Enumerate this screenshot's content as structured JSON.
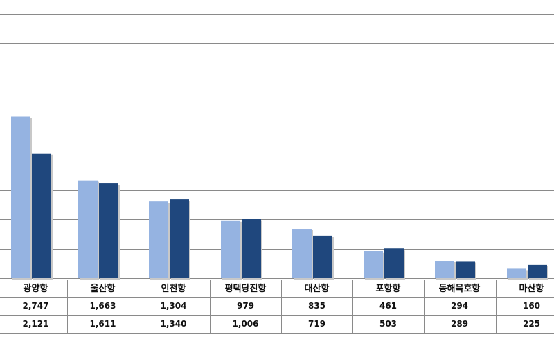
{
  "chart_data": {
    "type": "bar",
    "categories": [
      "광양항",
      "울산항",
      "인천항",
      "평택당진항",
      "대산항",
      "포항항",
      "동해묵호항",
      "마산항"
    ],
    "series": [
      {
        "values": [
          2747,
          1663,
          1304,
          979,
          835,
          461,
          294,
          160
        ],
        "color": "#95b3e1"
      },
      {
        "values": [
          2121,
          1611,
          1340,
          1006,
          719,
          503,
          289,
          225
        ],
        "color": "#1f477d"
      }
    ],
    "ylim": [
      0,
      5000
    ],
    "grid": true,
    "data_table": {
      "rows": [
        [
          "2,747",
          "1,663",
          "1,304",
          "979",
          "835",
          "461",
          "294",
          "160"
        ],
        [
          "2,121",
          "1,611",
          "1,340",
          "1,006",
          "719",
          "503",
          "289",
          "225"
        ]
      ]
    }
  }
}
